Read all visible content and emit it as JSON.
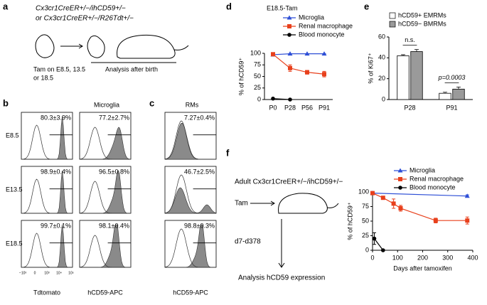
{
  "panel_labels": [
    "a",
    "b",
    "c",
    "d",
    "e",
    "f"
  ],
  "diagram_a": {
    "genotype_1": "Cx3cr1CreER+/−/ihCD59+/−",
    "genotype_2": "or Cx3cr1CreER+/−/R26Tdt+/−",
    "tam": [
      "Tam on E8.5, 13.5",
      "or 18.5"
    ],
    "analysis": "Analysis after birth"
  },
  "flow": {
    "titles": [
      "Microglia",
      "RMs"
    ],
    "rows": [
      "E8.5",
      "E13.5",
      "E18.5"
    ],
    "x_labels": [
      "Tdtomato",
      "hCD59-APC",
      "hCD59-APC"
    ],
    "axis_ticks": [
      "−10³",
      "0",
      "10³",
      "10⁴",
      "10⁵"
    ],
    "stats": [
      [
        "80.3±3.9%",
        "77.2±2.7%",
        "7.27±0.4%"
      ],
      [
        "98.9±0.4%",
        "96.5±0.8%",
        "46.7±2.5%"
      ],
      [
        "99.7±0.1%",
        "98.1±0.4%",
        "98.8±0.3%"
      ]
    ]
  },
  "diagram_f": {
    "genotype": "Adult Cx3cr1CreER+/−/ihCD59+/−",
    "tam": "Tam",
    "days": "d7-d378",
    "analysis": "Analysis hCD59 expression"
  },
  "chart_data": [
    {
      "type": "line",
      "title": "E18.5-Tam",
      "y_label": "% of hCD59⁺",
      "categories": [
        "P0",
        "P28",
        "P56",
        "P91"
      ],
      "ylim": [
        0,
        100
      ],
      "yticks": [
        0,
        25,
        50,
        75,
        100
      ],
      "series": [
        {
          "name": "Microglia",
          "color": "#2e4fd6",
          "marker": "triangle",
          "values": [
            97,
            99,
            99,
            99
          ],
          "errors": [
            1,
            0.5,
            0.5,
            0.5
          ]
        },
        {
          "name": "Renal macrophage",
          "color": "#e8401c",
          "marker": "square",
          "values": [
            98,
            68,
            59,
            55
          ],
          "errors": [
            2,
            7,
            4,
            6
          ]
        },
        {
          "name": "Blood monocyte",
          "color": "#000000",
          "marker": "circle",
          "values": [
            2,
            0,
            null,
            null
          ],
          "errors": [
            1,
            0.5,
            null,
            null
          ]
        }
      ]
    },
    {
      "type": "bar",
      "y_label": "% of Ki67⁺",
      "categories": [
        "P28",
        "P91"
      ],
      "ylim": [
        0,
        60
      ],
      "yticks": [
        0,
        20,
        40,
        60
      ],
      "annotations": [
        "n.s.",
        "p=0.0003"
      ],
      "series": [
        {
          "name": "hCD59+ EMRMs",
          "color": "#ffffff",
          "values": [
            42,
            6
          ],
          "errors": [
            1,
            1
          ]
        },
        {
          "name": "hCD59− BMRMs",
          "color": "#9a9a9a",
          "values": [
            46,
            10
          ],
          "errors": [
            2,
            2
          ]
        }
      ]
    },
    {
      "type": "line",
      "y_label": "% of hCD59⁺",
      "x_label": "Days after tamoxifen",
      "xlim": [
        0,
        400
      ],
      "xticks": [
        0,
        100,
        200,
        300,
        400
      ],
      "ylim": [
        0,
        100
      ],
      "yticks": [
        0,
        25,
        50,
        75,
        100
      ],
      "series": [
        {
          "name": "Microglia",
          "color": "#2e4fd6",
          "marker": "triangle",
          "x": [
            0,
            378
          ],
          "values": [
            98,
            93
          ],
          "errors": [
            1,
            2
          ]
        },
        {
          "name": "Renal macrophage",
          "color": "#e8401c",
          "marker": "square",
          "x": [
            0,
            42,
            84,
            112,
            252,
            378
          ],
          "values": [
            98,
            90,
            80,
            72,
            51,
            51
          ],
          "errors": [
            1,
            2,
            8,
            5,
            4,
            6
          ]
        },
        {
          "name": "Blood monocyte",
          "color": "#000000",
          "marker": "circle",
          "x": [
            7,
            42
          ],
          "values": [
            20,
            0
          ],
          "errors": [
            10,
            1
          ]
        }
      ]
    }
  ]
}
